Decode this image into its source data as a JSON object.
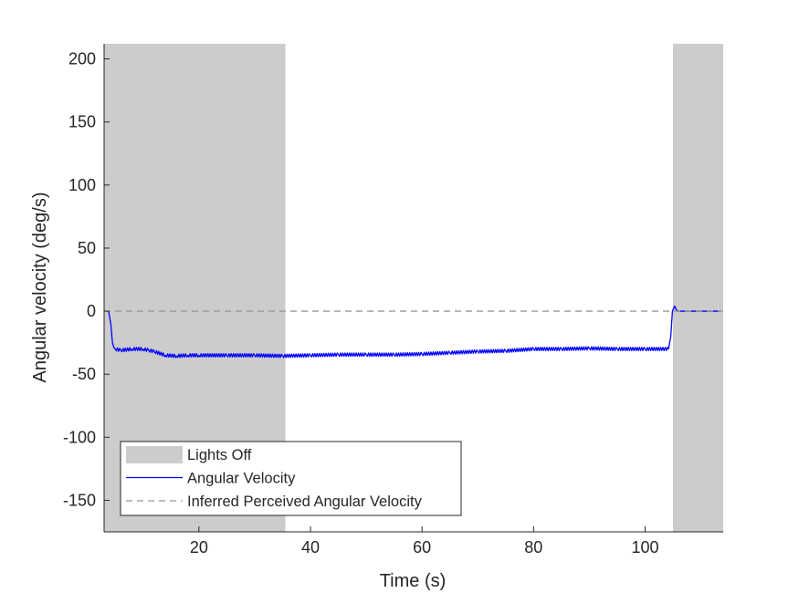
{
  "chart_data": {
    "type": "line",
    "xlabel": "Time (s)",
    "ylabel": "Angular velocity (deg/s)",
    "xlim": [
      3,
      114
    ],
    "ylim": [
      -175,
      212
    ],
    "x_ticks": [
      20,
      40,
      60,
      80,
      100
    ],
    "y_ticks": [
      -150,
      -100,
      -50,
      0,
      50,
      100,
      150,
      200
    ],
    "grid": false,
    "legend_position": "bottom-left",
    "shaded_regions": [
      {
        "name": "Lights Off",
        "x_start": 3,
        "x_end": 35.5,
        "color": "#cccccc"
      },
      {
        "name": "Lights Off",
        "x_start": 105,
        "x_end": 114,
        "color": "#cccccc"
      }
    ],
    "series": [
      {
        "name": "Angular Velocity",
        "style": "solid",
        "color": "#0000ff",
        "x": [
          3.8,
          4.2,
          4.5,
          5,
          6,
          8,
          10,
          11,
          12,
          14,
          16,
          18,
          20,
          25,
          30,
          35,
          40,
          45,
          50,
          55,
          60,
          65,
          70,
          75,
          80,
          85,
          90,
          95,
          100,
          104.2,
          104.6,
          104.9,
          105.3,
          105.6,
          106,
          108,
          110,
          112,
          113.5
        ],
        "y": [
          0,
          -10,
          -25,
          -30,
          -31,
          -30,
          -30,
          -31,
          -32,
          -35,
          -35.5,
          -35,
          -35,
          -35,
          -35,
          -35.5,
          -35,
          -34.5,
          -34.5,
          -34.5,
          -34,
          -33,
          -32,
          -31.5,
          -30,
          -30,
          -29.5,
          -30,
          -30,
          -30,
          -20,
          0,
          4,
          1,
          0,
          0,
          0,
          0,
          0
        ]
      },
      {
        "name": "Inferred Perceived Angular Velocity",
        "style": "dashed",
        "color": "#999999",
        "x": [
          3,
          114
        ],
        "y": [
          0,
          0
        ]
      }
    ],
    "legend": [
      {
        "label": "Lights Off",
        "kind": "patch",
        "color": "#cccccc"
      },
      {
        "label": "Angular Velocity",
        "kind": "line",
        "color": "#0000ff"
      },
      {
        "label": "Inferred Perceived Angular Velocity",
        "kind": "dashed",
        "color": "#999999"
      }
    ]
  }
}
